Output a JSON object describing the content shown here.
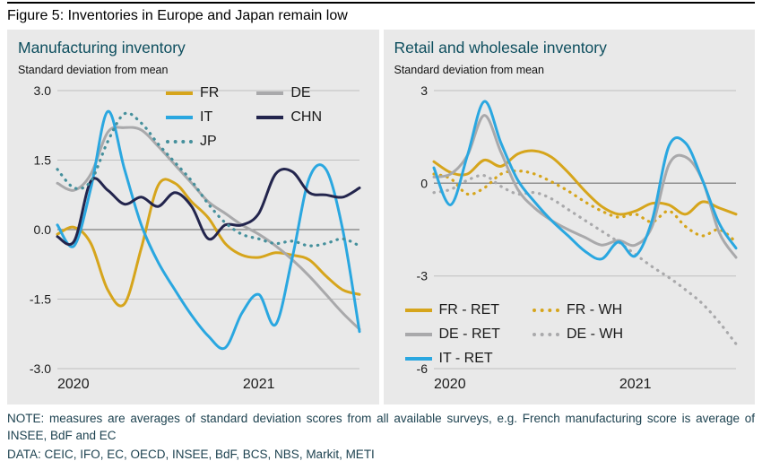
{
  "figure": {
    "title": "Figure 5: Inventories in Europe and Japan remain low",
    "note": "NOTE: measures are averages of standard deviation scores from all available surveys, e.g. French manufacturing score is average of INSEE, BdF and EC",
    "data_sources": "DATA: CEIC, IFO, EC, OECD, INSEE, BdF, BCS, NBS, Markit, METI"
  },
  "colors": {
    "fr_gold": "#d6a51c",
    "de_gray": "#a9a9ab",
    "it_blue": "#2aa7e0",
    "chn_navy": "#23254d",
    "jp_teal": "#45909c",
    "panel_bg": "#e9e9e9",
    "panel_title": "#0d4e5e",
    "grid_line": "#bfbfbf",
    "zero_line": "#8f8f8f"
  },
  "chart_data": [
    {
      "type": "line",
      "title": "Manufacturing inventory",
      "ylabel": "Standard deviation from mean",
      "ylim": [
        -3,
        3
      ],
      "yticks": [
        3.0,
        1.5,
        0.0,
        -1.5,
        -3.0
      ],
      "ytick_labels": [
        "3.0",
        "1.5",
        "0.0",
        "-1.5",
        "-3.0"
      ],
      "grid": true,
      "legend_position": "inside-top-right",
      "x_labels": [
        "2020",
        "2021"
      ],
      "x_label_positions": [
        0,
        12
      ],
      "x_count": 19,
      "x_description": "Monthly, Jan 2020 - Jul 2021",
      "series": [
        {
          "name": "FR",
          "color": "#d6a51c",
          "style": "solid",
          "values": [
            -0.1,
            0.05,
            -0.3,
            -1.3,
            -1.6,
            -0.4,
            0.95,
            1.0,
            0.6,
            0.25,
            -0.3,
            -0.55,
            -0.6,
            -0.5,
            -0.55,
            -0.65,
            -1.0,
            -1.3,
            -1.4
          ]
        },
        {
          "name": "DE",
          "color": "#a9a9ab",
          "style": "solid",
          "values": [
            1.0,
            0.85,
            1.2,
            2.1,
            2.2,
            2.15,
            1.8,
            1.4,
            1.0,
            0.6,
            0.35,
            0.1,
            -0.1,
            -0.35,
            -0.65,
            -1.0,
            -1.4,
            -1.8,
            -2.15
          ]
        },
        {
          "name": "IT",
          "color": "#2aa7e0",
          "style": "solid",
          "values": [
            0.1,
            -0.35,
            0.9,
            2.55,
            1.3,
            0.1,
            -0.7,
            -1.3,
            -1.85,
            -2.3,
            -2.55,
            -1.8,
            -1.4,
            -2.05,
            -0.6,
            1.1,
            1.3,
            0.0,
            -2.2
          ]
        },
        {
          "name": "CHN",
          "color": "#23254d",
          "style": "solid",
          "values": [
            -0.15,
            -0.25,
            1.05,
            0.85,
            0.55,
            0.7,
            0.5,
            0.8,
            0.5,
            -0.2,
            0.1,
            0.1,
            0.35,
            1.2,
            1.25,
            0.8,
            0.75,
            0.7,
            0.9
          ]
        },
        {
          "name": "JP",
          "color": "#45909c",
          "style": "dotted",
          "values": [
            1.3,
            0.9,
            1.05,
            1.9,
            2.5,
            2.3,
            1.85,
            1.45,
            1.05,
            0.55,
            0.15,
            -0.1,
            -0.2,
            -0.3,
            -0.25,
            -0.35,
            -0.3,
            -0.2,
            -0.35
          ]
        }
      ]
    },
    {
      "type": "line",
      "title": "Retail and wholesale inventory",
      "ylabel": "Standard deviation from mean",
      "ylim": [
        -6,
        3
      ],
      "yticks": [
        3,
        0,
        -3,
        -6
      ],
      "ytick_labels": [
        "3",
        "0",
        "-3",
        "-6"
      ],
      "grid": true,
      "legend_position": "inside-bottom-left",
      "x_labels": [
        "2020",
        "2021"
      ],
      "x_label_positions": [
        0,
        12
      ],
      "x_count": 19,
      "x_description": "Monthly, Jan 2020 - Jul 2021",
      "series": [
        {
          "name": "FR - RET",
          "color": "#d6a51c",
          "style": "solid",
          "values": [
            0.7,
            0.35,
            0.3,
            0.75,
            0.55,
            0.95,
            1.05,
            0.85,
            0.35,
            -0.25,
            -0.75,
            -1.0,
            -0.9,
            -0.65,
            -0.7,
            -1.0,
            -0.6,
            -0.8,
            -1.0
          ]
        },
        {
          "name": "FR - WH",
          "color": "#d6a51c",
          "style": "dotted",
          "values": [
            0.3,
            0.15,
            -0.35,
            -0.15,
            0.3,
            0.4,
            0.3,
            0.05,
            -0.25,
            -0.6,
            -0.9,
            -1.1,
            -1.0,
            -1.25,
            -0.9,
            -1.4,
            -1.7,
            -1.5,
            -1.9
          ]
        },
        {
          "name": "DE - RET",
          "color": "#a9a9ab",
          "style": "solid",
          "values": [
            0.2,
            0.3,
            0.9,
            2.2,
            1.0,
            -0.2,
            -0.8,
            -1.2,
            -1.5,
            -1.75,
            -2.0,
            -1.85,
            -2.0,
            -1.4,
            0.6,
            0.85,
            0.1,
            -1.6,
            -2.4
          ]
        },
        {
          "name": "DE - WH",
          "color": "#a9a9ab",
          "style": "dotted",
          "values": [
            -0.3,
            -0.2,
            0.1,
            0.25,
            -0.1,
            -0.35,
            -0.3,
            -0.5,
            -0.85,
            -1.2,
            -1.55,
            -1.9,
            -2.3,
            -2.7,
            -3.05,
            -3.45,
            -3.9,
            -4.5,
            -5.2
          ]
        },
        {
          "name": "IT - RET",
          "color": "#2aa7e0",
          "style": "solid",
          "values": [
            0.5,
            -0.7,
            0.9,
            2.65,
            1.3,
            0.1,
            -0.6,
            -1.2,
            -1.7,
            -2.2,
            -2.45,
            -1.9,
            -2.35,
            -1.2,
            1.2,
            1.3,
            0.1,
            -1.3,
            -2.1
          ]
        }
      ]
    }
  ]
}
